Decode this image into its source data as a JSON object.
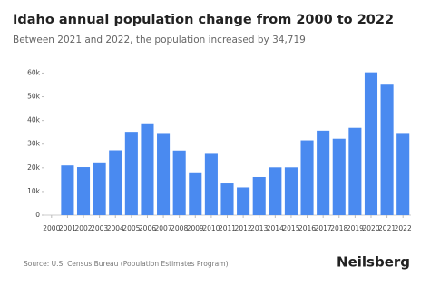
{
  "chart_data": {
    "type": "bar",
    "title": "Idaho annual population change from 2000 to 2022",
    "subtitle": "Between 2021 and 2022, the population increased by 34,719",
    "source": "Source: U.S. Census Bureau (Population Estimates Program)",
    "brand": "Neilsberg",
    "categories": [
      "2000",
      "2001",
      "2002",
      "2003",
      "2004",
      "2005",
      "2006",
      "2007",
      "2008",
      "2009",
      "2010",
      "2011",
      "2012",
      "2013",
      "2014",
      "2015",
      "2016",
      "2017",
      "2018",
      "2019",
      "2020",
      "2021",
      "2022"
    ],
    "values": [
      null,
      21000,
      20300,
      22300,
      27400,
      35200,
      38800,
      34700,
      27300,
      18100,
      25900,
      13400,
      11700,
      16100,
      20200,
      20200,
      31600,
      35700,
      32300,
      36900,
      60300,
      55100,
      34719
    ],
    "color": "#4a8af0",
    "ylim": [
      0,
      64000
    ],
    "yticks": [
      0,
      {
        "value": 10000,
        "label": "10k"
      },
      {
        "value": 20000,
        "label": "20k"
      },
      {
        "value": 30000,
        "label": "30k"
      },
      {
        "value": 40000,
        "label": "40k"
      },
      {
        "value": 50000,
        "label": "50k"
      },
      {
        "value": 60000,
        "label": "60k"
      }
    ],
    "grid": false
  }
}
